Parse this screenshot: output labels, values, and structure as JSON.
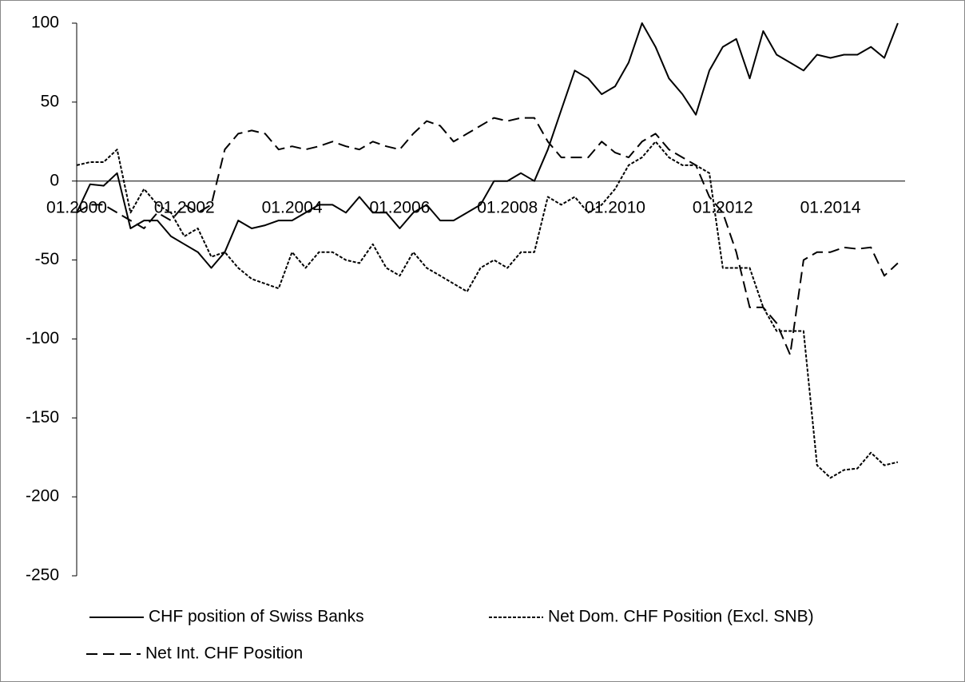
{
  "chart_data": {
    "type": "line",
    "categories": [
      "01.2000",
      null,
      null,
      null,
      null,
      null,
      null,
      null,
      "01.2002",
      null,
      null,
      null,
      null,
      null,
      null,
      null,
      "01.2004",
      null,
      null,
      null,
      null,
      null,
      null,
      null,
      "01.2006",
      null,
      null,
      null,
      null,
      null,
      null,
      null,
      "01.2008",
      null,
      null,
      null,
      null,
      null,
      null,
      null,
      "01.2010",
      null,
      null,
      null,
      null,
      null,
      null,
      null,
      "01.2012",
      null,
      null,
      null,
      null,
      null,
      null,
      null,
      "01.2014",
      null,
      null,
      null,
      null,
      null
    ],
    "series": [
      {
        "name": "CHF position of Swiss Banks",
        "color": "#000000",
        "line_style": "solid",
        "values": [
          -20,
          -2,
          -3,
          5,
          -30,
          -25,
          -25,
          -35,
          -40,
          -45,
          -55,
          -45,
          -25,
          -30,
          -28,
          -25,
          -25,
          -20,
          -15,
          -15,
          -20,
          -10,
          -20,
          -20,
          -30,
          -20,
          -15,
          -25,
          -25,
          -20,
          -15,
          0,
          0,
          5,
          0,
          20,
          45,
          70,
          65,
          55,
          60,
          75,
          100,
          85,
          65,
          55,
          42,
          70,
          85,
          90,
          65,
          95,
          80,
          75,
          70,
          80,
          78,
          80,
          80,
          85,
          78,
          100
        ]
      },
      {
        "name": "Net Dom. CHF Position (Excl. SNB)",
        "color": "#000000",
        "line_style": "dotted",
        "values": [
          10,
          12,
          12,
          20,
          -20,
          -5,
          -15,
          -20,
          -35,
          -30,
          -48,
          -45,
          -55,
          -62,
          -65,
          -68,
          -45,
          -55,
          -45,
          -45,
          -50,
          -52,
          -40,
          -55,
          -60,
          -45,
          -55,
          -60,
          -65,
          -70,
          -55,
          -50,
          -55,
          -45,
          -45,
          -10,
          -15,
          -10,
          -20,
          -15,
          -5,
          10,
          15,
          25,
          15,
          10,
          10,
          5,
          -55,
          -55,
          -55,
          -80,
          -95,
          -95,
          -95,
          -180,
          -188,
          -183,
          -182,
          -172,
          -180,
          -178
        ]
      },
      {
        "name": "Net Int. CHF Position",
        "color": "#000000",
        "line_style": "dashed",
        "values": [
          -20,
          -15,
          -15,
          -20,
          -25,
          -30,
          -20,
          -25,
          -15,
          -20,
          -15,
          20,
          30,
          32,
          30,
          20,
          22,
          20,
          22,
          25,
          22,
          20,
          25,
          22,
          20,
          30,
          38,
          35,
          25,
          30,
          35,
          40,
          38,
          40,
          40,
          25,
          15,
          15,
          15,
          25,
          18,
          15,
          25,
          30,
          20,
          15,
          10,
          -10,
          -20,
          -45,
          -80,
          -80,
          -90,
          -110,
          -50,
          -45,
          -45,
          -42,
          -43,
          -42,
          -60,
          -52
        ]
      }
    ],
    "ylim": [
      -250,
      100
    ],
    "yticks": [
      -250,
      -200,
      -150,
      -100,
      -50,
      0,
      50,
      100
    ]
  }
}
